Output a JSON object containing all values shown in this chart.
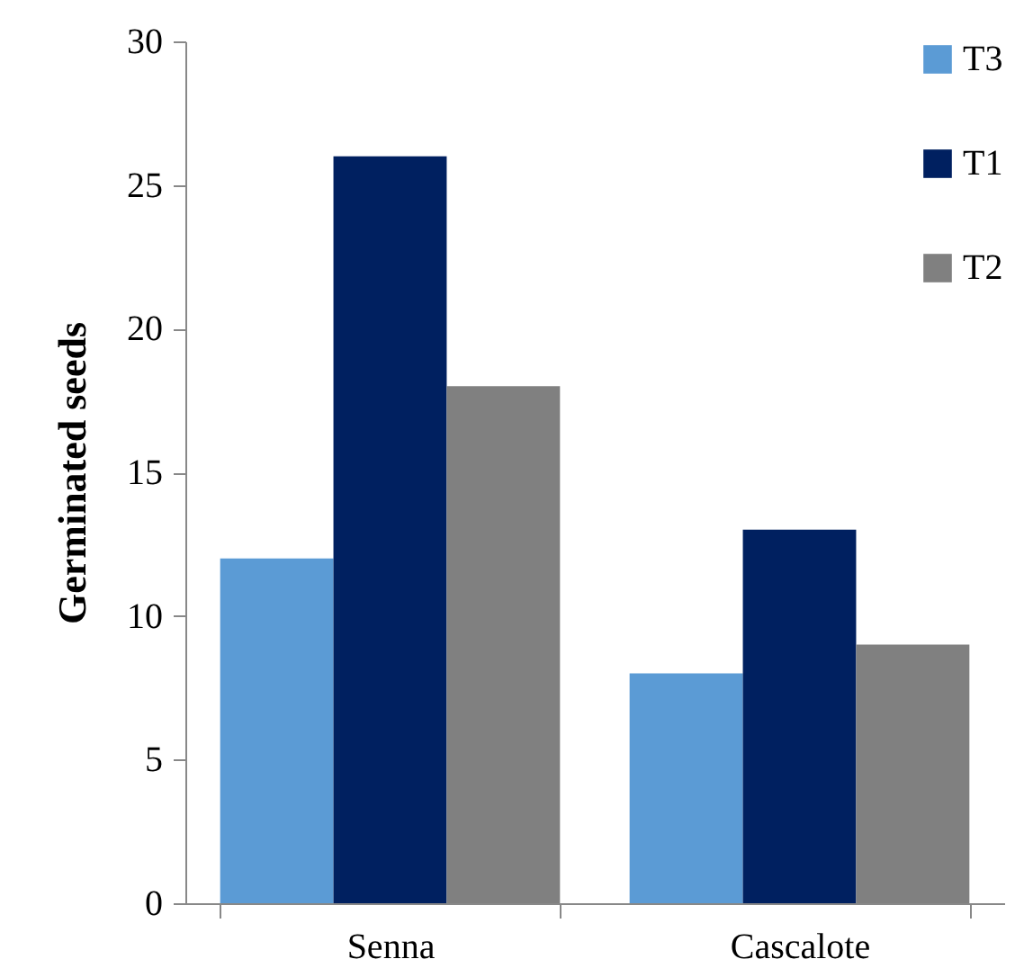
{
  "chart_data": {
    "type": "bar",
    "ylabel": "Germinated seeds",
    "categories": [
      "Senna",
      "Cascalote"
    ],
    "series": [
      {
        "name": "T3",
        "color": "#5b9bd5",
        "values": [
          12,
          8
        ]
      },
      {
        "name": "T1",
        "color": "#002060",
        "values": [
          26,
          13
        ]
      },
      {
        "name": "T2",
        "color": "#808080",
        "values": [
          18,
          9
        ]
      }
    ],
    "ylim": [
      0,
      30
    ],
    "yticks": [
      0,
      5,
      10,
      15,
      20,
      25,
      30
    ],
    "grid": false,
    "legend": "top right"
  }
}
